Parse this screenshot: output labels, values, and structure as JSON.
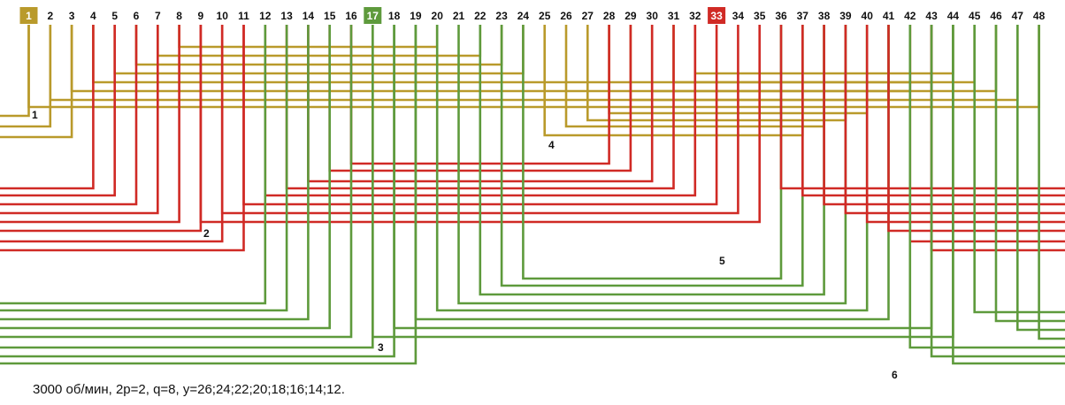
{
  "colors": {
    "phase_a": "#b99a2b",
    "phase_b": "#d02a25",
    "phase_c": "#5e9a3c"
  },
  "slots": [
    "1",
    "2",
    "3",
    "4",
    "5",
    "6",
    "7",
    "8",
    "9",
    "10",
    "11",
    "12",
    "13",
    "14",
    "15",
    "16",
    "17",
    "18",
    "19",
    "20",
    "21",
    "22",
    "23",
    "24",
    "25",
    "26",
    "27",
    "28",
    "29",
    "30",
    "31",
    "32",
    "33",
    "34",
    "35",
    "36",
    "37",
    "38",
    "39",
    "40",
    "41",
    "42",
    "43",
    "44",
    "45",
    "46",
    "47",
    "48"
  ],
  "highlighted_slots": [
    {
      "slot": "1",
      "color": "#b99a2b"
    },
    {
      "slot": "17",
      "color": "#5e9a3c"
    },
    {
      "slot": "33",
      "color": "#d02a25"
    }
  ],
  "phase_labels": [
    "1",
    "2",
    "3",
    "4",
    "5",
    "6"
  ],
  "caption": "3000 об/мин, 2p=2, q=8, y=26;24;22;20;18;16;14;12."
}
